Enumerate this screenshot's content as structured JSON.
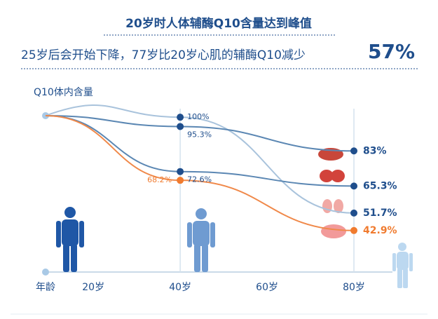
{
  "chart_data": {
    "type": "line",
    "title": "20岁时人体辅酶Q10含量达到峰值",
    "subtitle": "25岁后会开始下降，77岁比20岁心肌的辅酶Q10减少",
    "highlight": "57%",
    "y_label": "Q10体内含量",
    "x_label": "年龄",
    "x": [
      40,
      80
    ],
    "xlim": [
      9,
      90
    ],
    "xticks": [
      {
        "value": 20,
        "label": "20岁"
      },
      {
        "value": 40,
        "label": "40岁"
      },
      {
        "value": 60,
        "label": "60岁"
      },
      {
        "value": 80,
        "label": "80岁"
      }
    ],
    "ylim": [
      40,
      105
    ],
    "series": [
      {
        "color": "#a9c3dc",
        "values": [
          100,
          51.7
        ],
        "value_labels": [
          "100%",
          "51.7%"
        ]
      },
      {
        "color": "#5b87b3",
        "values": [
          95.3,
          83
        ],
        "value_labels": [
          "95.3%",
          "83%"
        ]
      },
      {
        "color": "#5b87b3",
        "values": [
          72.6,
          65.3
        ],
        "value_labels": [
          "72.6%",
          "65.3%"
        ]
      },
      {
        "color": "#f0894a",
        "values": [
          68.2,
          42.9
        ],
        "value_labels": [
          "68.2%",
          "42.9%"
        ]
      }
    ]
  }
}
